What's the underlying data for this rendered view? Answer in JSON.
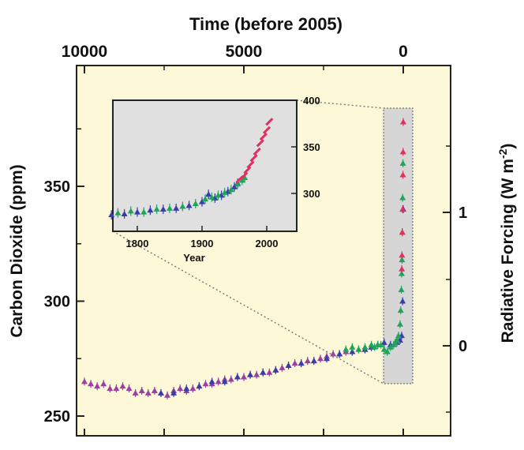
{
  "chart_data": [
    {
      "type": "scatter",
      "title": "",
      "top_axis": {
        "label": "Time (before 2005)",
        "ticks": [
          10000,
          5000,
          0
        ],
        "range": [
          10000,
          -1500
        ]
      },
      "left_axis": {
        "label": "Carbon Dioxide (ppm)",
        "ticks": [
          250,
          300,
          350
        ],
        "range": [
          245,
          395
        ]
      },
      "right_axis": {
        "label_main": "Radiative Forcing (W m",
        "label_sup": "-2",
        "label_close": ")",
        "ticks": [
          0,
          1
        ]
      },
      "grid": false,
      "background": "#fdf8d8",
      "series": [
        {
          "color": "#9b3fa0",
          "x": [
            10000,
            9800,
            9600,
            9400,
            9200,
            9000,
            8800,
            8600,
            8400,
            8200,
            8000,
            7800,
            7600,
            7400,
            7200,
            7000,
            6800,
            6600,
            6400,
            6200,
            6000,
            5800,
            5600,
            5400,
            5200,
            5000,
            4800,
            4600,
            4400,
            4200,
            4000,
            3800,
            3600,
            3400,
            3200,
            3000,
            2800,
            2600,
            2400,
            2200,
            2000,
            1800,
            1600,
            1400,
            1200,
            1000
          ],
          "y": [
            265,
            264,
            263,
            264,
            262,
            262,
            263,
            262,
            260,
            261,
            260,
            261,
            260,
            259,
            261,
            262,
            261,
            262,
            263,
            264,
            264,
            265,
            266,
            266,
            267,
            267,
            268,
            268,
            269,
            269,
            270,
            271,
            272,
            273,
            273,
            274,
            274,
            275,
            276,
            277,
            277,
            278,
            278,
            279,
            279,
            280
          ]
        },
        {
          "color": "#3a3da8",
          "x": [
            7600,
            7200,
            6800,
            6400,
            6000,
            5600,
            5200,
            4800,
            4400,
            4000,
            3600,
            3200,
            2800,
            2400,
            2000,
            1600,
            1200,
            1000,
            800,
            600,
            400,
            200,
            100,
            50,
            20,
            0
          ],
          "y": [
            260,
            260,
            262,
            263,
            265,
            265,
            267,
            268,
            269,
            270,
            272,
            273,
            274,
            275,
            277,
            278,
            279,
            280,
            281,
            282,
            281,
            282,
            283,
            285,
            300,
            340
          ]
        },
        {
          "color": "#22a35a",
          "x": [
            1800,
            1600,
            1400,
            1200,
            1000,
            900,
            800,
            700,
            600,
            500,
            400,
            300,
            250,
            200,
            150,
            100,
            80,
            60,
            50,
            40,
            30,
            20,
            10
          ],
          "y": [
            279,
            280,
            279,
            280,
            281,
            280,
            281,
            281,
            279,
            278,
            280,
            281,
            282,
            283,
            285,
            290,
            296,
            305,
            312,
            318,
            330,
            345,
            360
          ]
        },
        {
          "color": "#e03060",
          "x": [
            45,
            40,
            30,
            20,
            10,
            5,
            0
          ],
          "y": [
            314,
            320,
            330,
            340,
            355,
            365,
            378
          ]
        }
      ]
    },
    {
      "type": "scatter",
      "title": "",
      "xlabel": "Year",
      "x_ticks": [
        1800,
        1900,
        2000
      ],
      "y_ticks": [
        300,
        350,
        400
      ],
      "xlim": [
        1755,
        2037
      ],
      "ylim": [
        270,
        400
      ],
      "background": "#e0e0e0",
      "series": [
        {
          "color": "#3a3da8",
          "x": [
            1760,
            1780,
            1800,
            1820,
            1840,
            1860,
            1880,
            1900,
            1910,
            1920,
            1930,
            1940,
            1950,
            1955
          ],
          "y": [
            277,
            278,
            280,
            282,
            283,
            284,
            287,
            291,
            299,
            295,
            298,
            302,
            307,
            311
          ]
        },
        {
          "color": "#22a35a",
          "x": [
            1770,
            1790,
            1810,
            1830,
            1850,
            1870,
            1890,
            1905,
            1915,
            1925,
            1935,
            1945,
            1955,
            1962,
            1966
          ],
          "y": [
            279,
            281,
            280,
            283,
            284,
            286,
            289,
            294,
            296,
            298,
            301,
            304,
            310,
            314,
            317
          ]
        },
        {
          "color": "#e03060",
          "x": [
            1958,
            1965,
            1970,
            1975,
            1980,
            1985,
            1990,
            1995,
            2000,
            2004
          ],
          "y": [
            315,
            319,
            325,
            331,
            338,
            345,
            354,
            361,
            368,
            377
          ]
        }
      ]
    }
  ]
}
